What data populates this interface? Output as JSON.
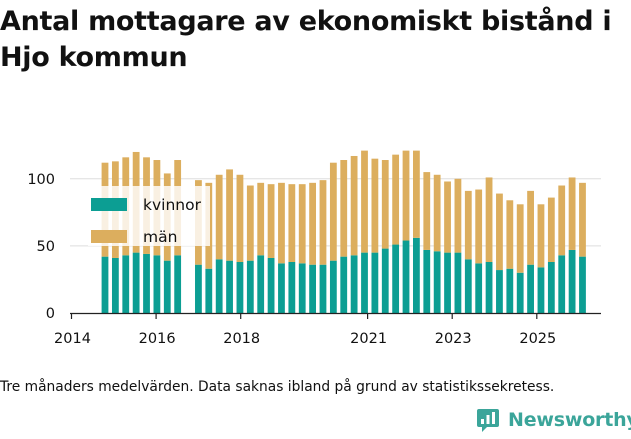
{
  "title": "Antal mottagare av ekonomiskt bistånd i Hjo kommun",
  "footnote": "Tre månaders medelvärden. Data saknas ibland på grund av statistikssekretess.",
  "brand": {
    "name": "Newsworthy"
  },
  "colors": {
    "kvinnor": "#0c9e93",
    "man": "#dcae5e",
    "text": "#111111",
    "axis": "#222222",
    "grid": "#dddddd",
    "brand": "#3ba59a",
    "legend_backdrop": "#ffffff"
  },
  "chart_data": {
    "type": "bar",
    "stacked": true,
    "title": "Antal mottagare av ekonomiskt bistånd i Hjo kommun",
    "x_ticks": [
      2014,
      2016,
      2018,
      2021,
      2023,
      2025
    ],
    "y_ticks": [
      0,
      50,
      100
    ],
    "ylim": [
      0,
      125
    ],
    "series": [
      {
        "name": "kvinnor",
        "values": [
          42,
          41,
          43,
          45,
          44,
          43,
          39,
          43,
          null,
          36,
          33,
          40,
          39,
          38,
          39,
          43,
          41,
          37,
          38,
          37,
          36,
          36,
          39,
          42,
          43,
          45,
          45,
          48,
          51,
          54,
          56,
          47,
          46,
          45,
          45,
          40,
          37,
          38,
          32,
          33,
          30,
          36,
          34,
          38,
          43,
          47,
          42
        ]
      },
      {
        "name": "män",
        "values": [
          70,
          72,
          73,
          75,
          72,
          71,
          65,
          71,
          null,
          63,
          64,
          63,
          68,
          65,
          56,
          54,
          55,
          60,
          58,
          59,
          61,
          63,
          73,
          72,
          74,
          76,
          70,
          66,
          67,
          67,
          65,
          58,
          57,
          53,
          55,
          51,
          55,
          63,
          57,
          51,
          51,
          55,
          47,
          48,
          52,
          54,
          55
        ]
      }
    ],
    "legend": {
      "position": "upper-left",
      "entries": [
        "kvinnor",
        "män"
      ]
    }
  }
}
